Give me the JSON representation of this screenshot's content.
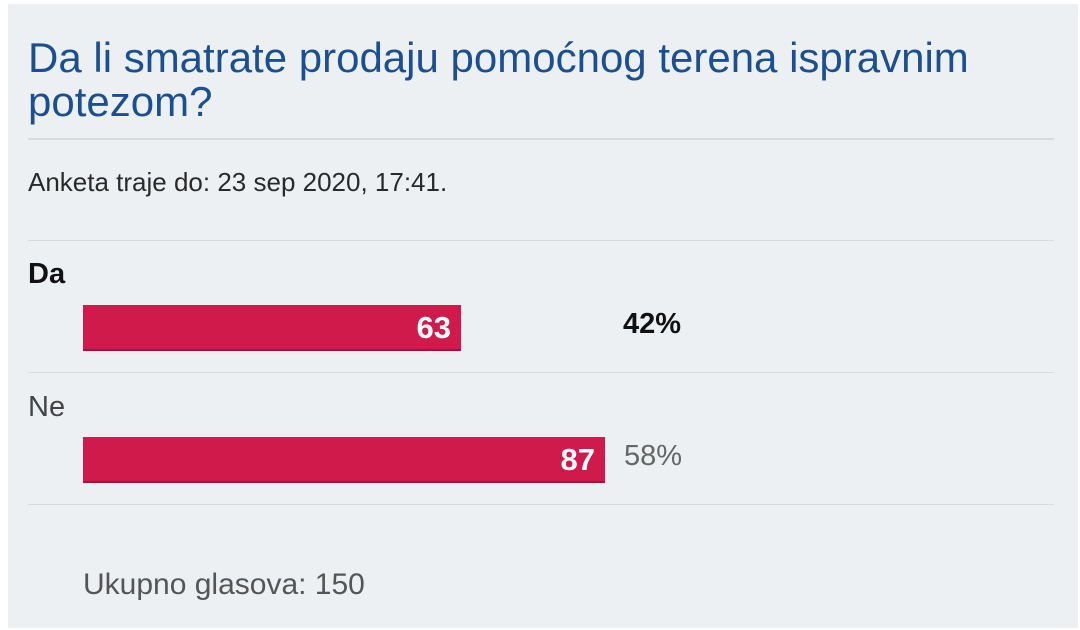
{
  "poll": {
    "title": "Da li smatrate prodaju pomoćnog terena ispravnim potezom?",
    "deadline": "Anketa traje do: 23 sep 2020, 17:41.",
    "bar_color": "#d01a4c",
    "title_color": "#1a4f93",
    "options": [
      {
        "label": "Da",
        "votes": "63",
        "percent": "42%",
        "share": 0.42,
        "selected": true
      },
      {
        "label": "Ne",
        "votes": "87",
        "percent": "58%",
        "share": 0.58,
        "selected": false
      }
    ],
    "total": "Ukupno glasova: 150"
  }
}
